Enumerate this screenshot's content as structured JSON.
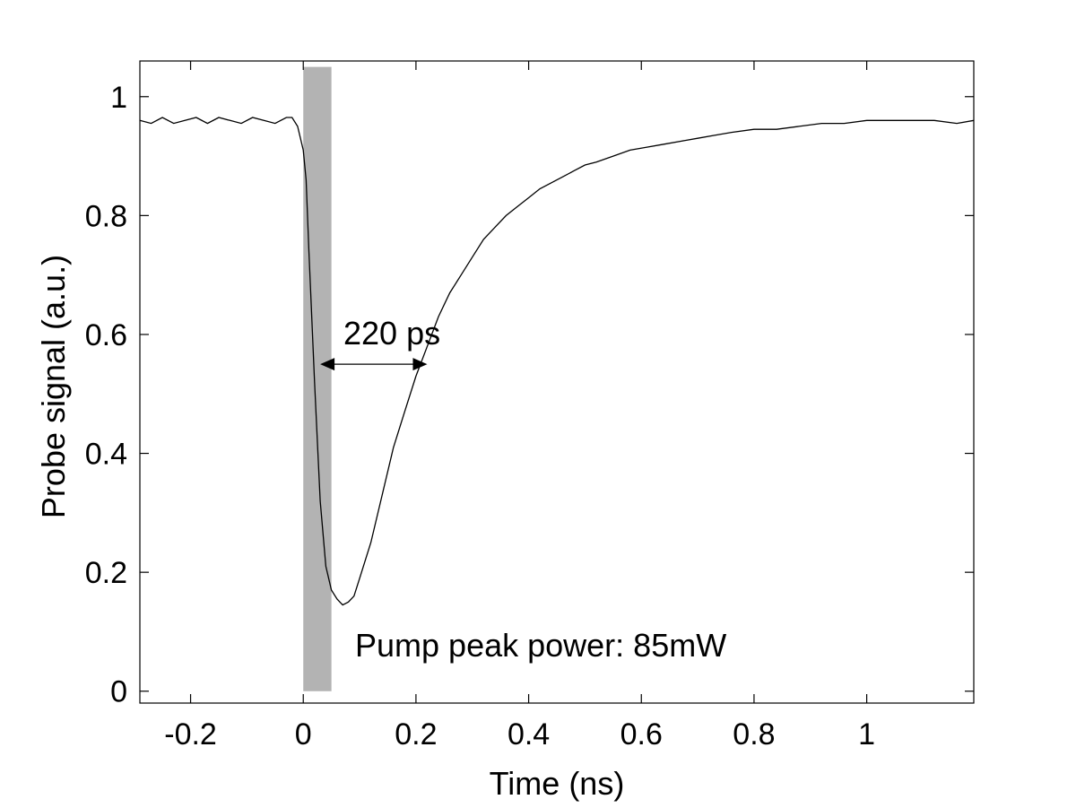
{
  "chart_data": {
    "type": "line",
    "title": "",
    "xlabel": "Time (ns)",
    "ylabel": "Probe signal (a.u.)",
    "xlim": [
      -0.29,
      1.19
    ],
    "ylim": [
      -0.02,
      1.06
    ],
    "x_ticks": [
      -0.2,
      0,
      0.2,
      0.4,
      0.6,
      0.8,
      1
    ],
    "x_tick_labels": [
      "-0.2",
      "0",
      "0.2",
      "0.4",
      "0.6",
      "0.8",
      "1"
    ],
    "y_ticks": [
      0,
      0.2,
      0.4,
      0.6,
      0.8,
      1
    ],
    "y_tick_labels": [
      "0",
      "0.2",
      "0.4",
      "0.6",
      "0.8",
      "1"
    ],
    "grid": false,
    "legend": "none",
    "shaded_region": {
      "x": [
        0,
        0.05
      ],
      "y": [
        0,
        1.05
      ],
      "color": "#b3b3b3"
    },
    "annotations": {
      "width_label": "220 ps",
      "width_arrow": {
        "x_start": 0.03,
        "x_end": 0.22,
        "y": 0.55
      },
      "pump_label": "Pump peak power: 85mW"
    },
    "series": [
      {
        "color": "#000000",
        "x": [
          -0.29,
          -0.27,
          -0.25,
          -0.23,
          -0.21,
          -0.19,
          -0.17,
          -0.15,
          -0.13,
          -0.11,
          -0.09,
          -0.07,
          -0.05,
          -0.03,
          -0.02,
          -0.01,
          0.0,
          0.005,
          0.01,
          0.02,
          0.03,
          0.04,
          0.05,
          0.06,
          0.07,
          0.08,
          0.09,
          0.1,
          0.12,
          0.14,
          0.16,
          0.18,
          0.2,
          0.22,
          0.24,
          0.26,
          0.28,
          0.3,
          0.32,
          0.34,
          0.36,
          0.38,
          0.4,
          0.42,
          0.44,
          0.46,
          0.48,
          0.5,
          0.52,
          0.55,
          0.58,
          0.61,
          0.64,
          0.67,
          0.7,
          0.73,
          0.76,
          0.8,
          0.84,
          0.88,
          0.92,
          0.96,
          1.0,
          1.04,
          1.08,
          1.12,
          1.16,
          1.19
        ],
        "y": [
          0.96,
          0.955,
          0.965,
          0.955,
          0.96,
          0.965,
          0.955,
          0.965,
          0.96,
          0.955,
          0.965,
          0.96,
          0.955,
          0.965,
          0.965,
          0.95,
          0.91,
          0.86,
          0.74,
          0.52,
          0.32,
          0.21,
          0.17,
          0.155,
          0.145,
          0.15,
          0.16,
          0.19,
          0.25,
          0.33,
          0.41,
          0.47,
          0.53,
          0.58,
          0.63,
          0.67,
          0.7,
          0.73,
          0.76,
          0.78,
          0.8,
          0.815,
          0.83,
          0.845,
          0.855,
          0.865,
          0.875,
          0.885,
          0.89,
          0.9,
          0.91,
          0.915,
          0.92,
          0.925,
          0.93,
          0.935,
          0.94,
          0.945,
          0.945,
          0.95,
          0.955,
          0.955,
          0.96,
          0.96,
          0.96,
          0.96,
          0.955,
          0.96
        ]
      }
    ]
  }
}
